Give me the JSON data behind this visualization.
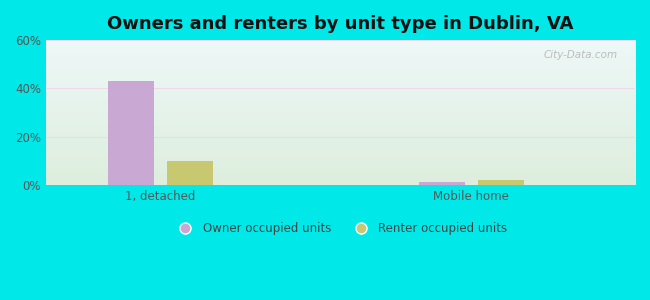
{
  "title": "Owners and renters by unit type in Dublin, VA",
  "categories": [
    "1, detached",
    "Mobile home"
  ],
  "owner_values": [
    43.0,
    1.2
  ],
  "renter_values": [
    10.0,
    2.2
  ],
  "owner_color": "#c9a8d4",
  "renter_color": "#c8c870",
  "background_outer": "#00e8e8",
  "background_inner_top": "#eef8f8",
  "background_inner_bottom": "#ddeedd",
  "ylim": [
    0,
    60
  ],
  "yticks": [
    0,
    20,
    40,
    60
  ],
  "ytick_labels": [
    "0%",
    "20%",
    "40%",
    "60%"
  ],
  "legend_owner": "Owner occupied units",
  "legend_renter": "Renter occupied units",
  "title_fontsize": 13,
  "bar_width": 0.28,
  "group_positions": [
    0.9,
    2.8
  ],
  "xlim": [
    0.2,
    3.8
  ],
  "watermark": "City-Data.com"
}
